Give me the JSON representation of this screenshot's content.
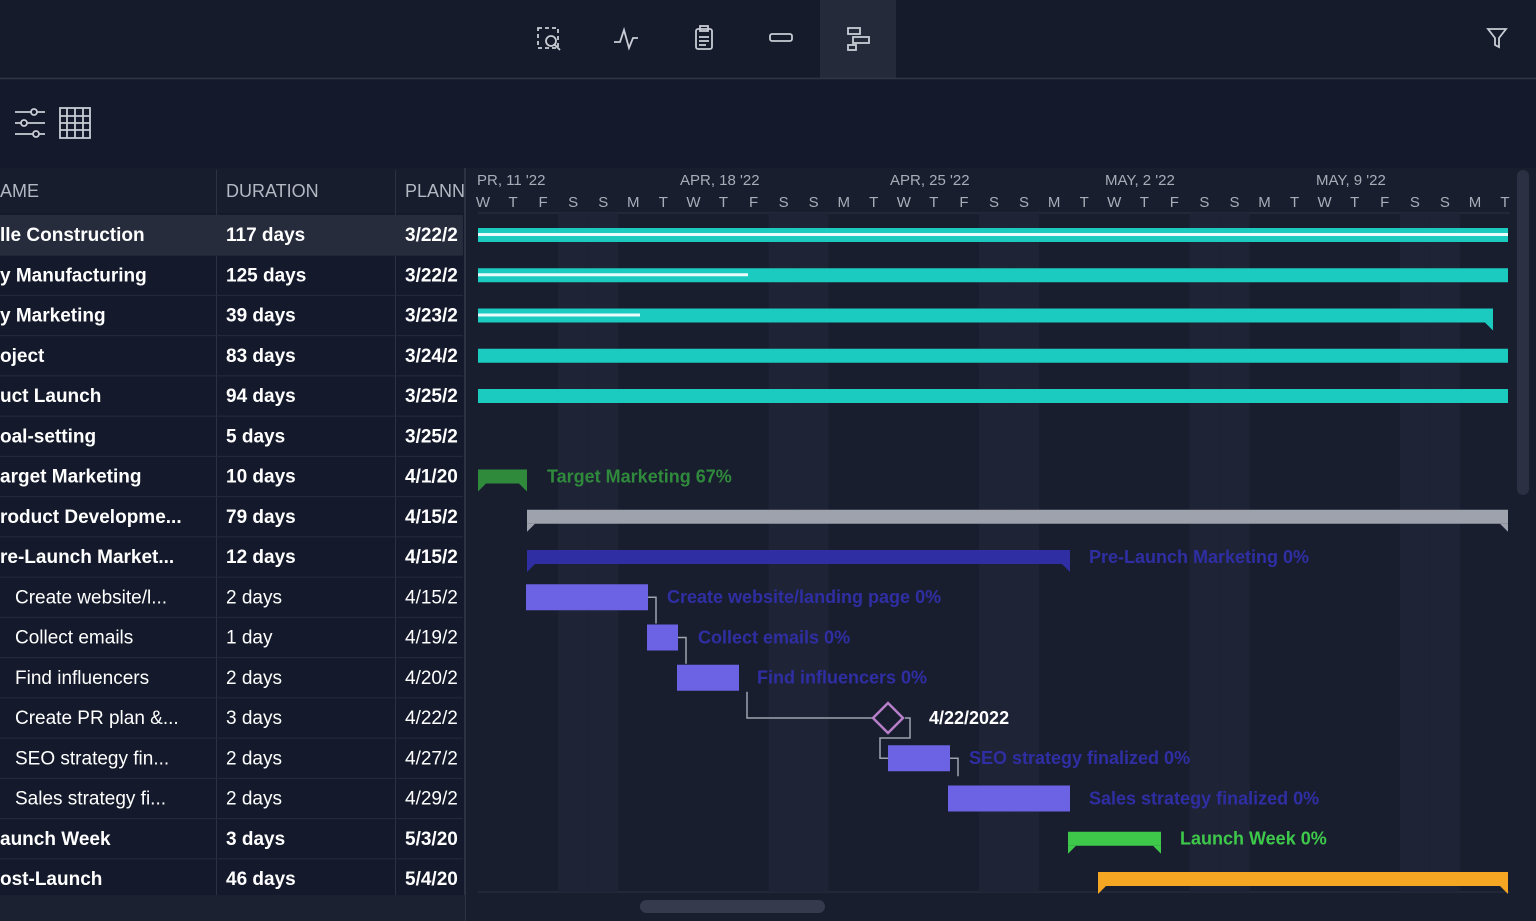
{
  "table": {
    "headers": [
      "AME",
      "DURATION",
      "PLANN"
    ],
    "rows": [
      [
        "lle Construction",
        "117 days",
        "3/22/2"
      ],
      [
        "y Manufacturing",
        "125 days",
        "3/22/2"
      ],
      [
        "y Marketing",
        "39 days",
        "3/23/2"
      ],
      [
        "oject",
        "83 days",
        "3/24/2"
      ],
      [
        "uct Launch",
        "94 days",
        "3/25/2"
      ],
      [
        "oal-setting",
        "5 days",
        "3/25/2"
      ],
      [
        "arget Marketing",
        "10 days",
        "4/1/20"
      ],
      [
        "roduct Developme...",
        "79 days",
        "4/15/2"
      ],
      [
        "re-Launch Market...",
        "12 days",
        "4/15/2"
      ],
      [
        "Create website/l...",
        "2 days",
        "4/15/2"
      ],
      [
        "Collect emails",
        "1 day",
        "4/19/2"
      ],
      [
        "Find influencers",
        "2 days",
        "4/20/2"
      ],
      [
        "Create PR plan &...",
        "3 days",
        "4/22/2"
      ],
      [
        "SEO strategy fin...",
        "2 days",
        "4/27/2"
      ],
      [
        "Sales strategy fi...",
        "2 days",
        "4/29/2"
      ],
      [
        "aunch Week",
        "3 days",
        "5/3/20"
      ],
      [
        "ost-Launch",
        "46 days",
        "5/4/20"
      ]
    ]
  },
  "timeline": {
    "weeks": [
      "PR, 11 '22",
      "APR, 18 '22",
      "APR, 25 '22",
      "MAY, 2 '22",
      "MAY, 9 '22"
    ],
    "days": [
      "W",
      "T",
      "F",
      "S",
      "S",
      "M",
      "T",
      "W",
      "T",
      "F",
      "S",
      "S",
      "M",
      "T",
      "W",
      "T",
      "F",
      "S",
      "S",
      "M",
      "T",
      "W",
      "T",
      "F",
      "S",
      "S",
      "M",
      "T",
      "W",
      "T",
      "F",
      "S",
      "S",
      "M",
      "T"
    ]
  },
  "gantt": {
    "labels": [
      null,
      null,
      null,
      null,
      null,
      null,
      "Target Marketing 67%",
      null,
      "Pre-Launch Marketing 0%",
      "Create website/landing page 0%",
      "Collect emails 0%",
      "Find influencers 0%",
      "4/22/2022",
      "SEO strategy finalized 0%",
      "Sales strategy finalized 0%",
      "Launch Week 0%",
      null
    ]
  }
}
